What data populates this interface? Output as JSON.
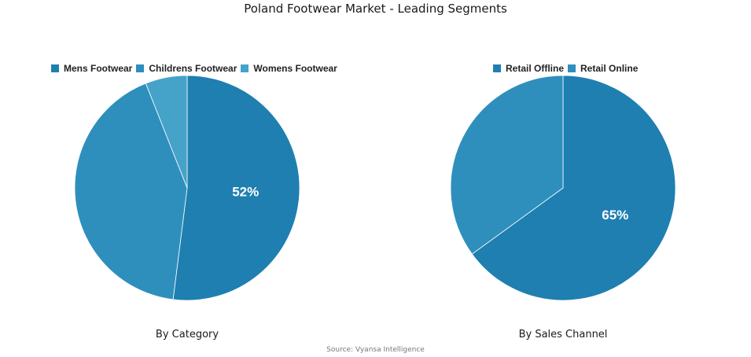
{
  "title": "Poland Footwear Market - Leading Segments",
  "source": "Source: Vyansa Intelligence",
  "chart_data": [
    {
      "type": "pie",
      "caption": "By Category",
      "legend_position": "top",
      "slices": [
        {
          "label": "Mens Footwear",
          "value": 52,
          "color": "#1f7fb0",
          "display": "52%"
        },
        {
          "label": "Childrens Footwear",
          "value": 42,
          "color": "#2e8fbd",
          "display": ""
        },
        {
          "label": "Womens Footwear",
          "value": 6,
          "color": "#45a3c9",
          "display": ""
        }
      ]
    },
    {
      "type": "pie",
      "caption": "By Sales Channel",
      "legend_position": "top",
      "slices": [
        {
          "label": "Retail Offline",
          "value": 65,
          "color": "#1f7fb0",
          "display": "65%"
        },
        {
          "label": "Retail Online",
          "value": 35,
          "color": "#2e8fbd",
          "display": ""
        }
      ]
    }
  ]
}
